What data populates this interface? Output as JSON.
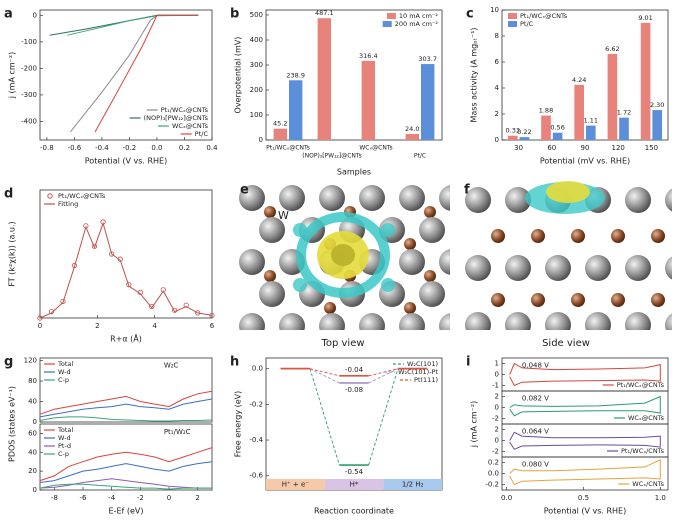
{
  "chart_data": [
    {
      "label": "a",
      "type": "line",
      "xlabel": "Potential (V vs. RHE)",
      "ylabel": "j (mA cm⁻²)",
      "xlim": [
        -0.85,
        0.4
      ],
      "xticks": [
        -0.8,
        -0.6,
        -0.4,
        -0.2,
        {
          "value": 0,
          "label": "0.0"
        },
        0.2,
        0.4
      ],
      "ylim": [
        -470,
        20
      ],
      "yticks": [
        -400,
        -300,
        -200,
        -100,
        0
      ],
      "legend": "lower right",
      "series": [
        {
          "name": "Pt₁/WCₓ@CNTs",
          "color": "#8a8a8a",
          "x": [
            -0.63,
            -0.4,
            -0.2,
            -0.05,
            0.0,
            0.3
          ],
          "values": [
            -440,
            -290,
            -150,
            -20,
            0,
            0
          ]
        },
        {
          "name": "(NOP)₃[PW₁₂]@CNTs",
          "color": "#2f6f6a",
          "x": [
            -0.78,
            -0.5,
            -0.2,
            0.0,
            0.3
          ],
          "values": [
            -75,
            -50,
            -20,
            0,
            0
          ]
        },
        {
          "name": "WCₓ@CNTs",
          "color": "#3aa57a",
          "x": [
            -0.65,
            -0.4,
            -0.2,
            0.0,
            0.3
          ],
          "values": [
            -75,
            -45,
            -20,
            -2,
            0
          ]
        },
        {
          "name": "Pt/C",
          "color": "#d9453b",
          "x": [
            -0.45,
            -0.3,
            -0.1,
            0.0,
            0.3
          ],
          "values": [
            -440,
            -300,
            -110,
            0,
            0
          ]
        }
      ]
    },
    {
      "label": "b",
      "type": "bar",
      "xlabel": "Samples",
      "ylabel": "Overpotential (mV)",
      "categories": [
        "Pt₁/WCₓ@CNTs",
        "(NOP)₃[PW₁₂]@CNTs",
        "WCₓ@CNTs",
        "Pt/C"
      ],
      "ylim": [
        0,
        520
      ],
      "yticks": [
        0,
        100,
        200,
        300,
        400,
        500
      ],
      "legend": "upper right",
      "series": [
        {
          "name": "10 mA cm⁻²",
          "color": "#e8837c",
          "values": [
            45.2,
            487.1,
            316.4,
            24.0
          ],
          "value_labels": [
            "45.2",
            "487.1",
            "316.4",
            "24.0"
          ]
        },
        {
          "name": "200 mA cm⁻²",
          "color": "#5b8fd9",
          "values": [
            238.9,
            null,
            null,
            303.7
          ]
        }
      ]
    },
    {
      "label": "c",
      "type": "bar",
      "xlabel": "Potential (mV vs. RHE)",
      "ylabel": "Mass activity (A mgₚₜ⁻¹)",
      "categories": [
        "30",
        "60",
        "90",
        "120",
        "150"
      ],
      "ylim": [
        0,
        10
      ],
      "yticks": [
        0,
        2,
        4,
        6,
        8,
        10
      ],
      "legend": "upper left",
      "series": [
        {
          "name": "Pt₁/WCₓ@CNTs",
          "color": "#e8837c",
          "values": [
            0.33,
            1.88,
            4.24,
            6.62,
            9.01
          ]
        },
        {
          "name": "Pt/C",
          "color": "#5b8fd9",
          "values": [
            0.22,
            0.56,
            1.11,
            1.72,
            2.3
          ],
          "value_labels": [
            "0.22",
            "0.56",
            "1.11",
            "1.72",
            "2.30"
          ]
        }
      ]
    },
    {
      "label": "d",
      "type": "line",
      "xlabel": "R+α (Å)",
      "ylabel": "FT (k²χ(k)) (a.u.)",
      "xlim": [
        0,
        6
      ],
      "xticks": [
        0,
        2,
        4,
        6
      ],
      "ylim": [
        0,
        1
      ],
      "legend": "upper left",
      "x": [
        0,
        0.4,
        0.8,
        1.2,
        1.6,
        1.9,
        2.2,
        2.5,
        2.8,
        3.1,
        3.5,
        3.9,
        4.3,
        4.7,
        5.1,
        5.5,
        6
      ],
      "series": [
        {
          "name": "Pt₁/WCₓ@CNTs",
          "color": "#c0504d",
          "marker": "o",
          "values": [
            0.0,
            0.05,
            0.13,
            0.41,
            0.72,
            0.56,
            0.75,
            0.5,
            0.46,
            0.26,
            0.2,
            0.09,
            0.22,
            0.06,
            0.1,
            0.04,
            0.02
          ]
        },
        {
          "name": "Fitting",
          "color": "#c0504d",
          "values": [
            0.0,
            0.04,
            0.12,
            0.4,
            0.71,
            0.55,
            0.74,
            0.5,
            0.45,
            0.25,
            0.19,
            0.08,
            0.21,
            0.05,
            0.09,
            0.04,
            0.02
          ]
        }
      ]
    },
    {
      "label": "g",
      "type": "line",
      "ylabel": "PDOS (states eV⁻¹)",
      "annotation": "W₂C",
      "xlim": [
        -9,
        3
      ],
      "ylim": [
        0,
        125
      ],
      "yticks": [
        0,
        40,
        80,
        120
      ],
      "legend": "upper left",
      "x": [
        -9,
        -8,
        -7,
        -6,
        -5,
        -4,
        -3,
        -2,
        -1,
        0,
        1,
        2,
        3
      ],
      "series": [
        {
          "name": "Total",
          "color": "#d9453b",
          "values": [
            15,
            25,
            30,
            35,
            40,
            45,
            50,
            40,
            35,
            30,
            45,
            55,
            60
          ]
        },
        {
          "name": "W-d",
          "color": "#3b6fc4",
          "values": [
            10,
            15,
            20,
            25,
            28,
            30,
            35,
            30,
            28,
            25,
            35,
            40,
            45
          ]
        },
        {
          "name": "C-p",
          "color": "#3aa57a",
          "values": [
            3,
            8,
            10,
            10,
            8,
            5,
            4,
            3,
            2,
            2,
            3,
            3,
            4
          ]
        }
      ]
    },
    {
      "type": "line",
      "xlabel": "E-Ef (eV)",
      "annotation": "Pt₁/W₂C",
      "xlim": [
        -9,
        3
      ],
      "xticks": [
        -8,
        -6,
        -4,
        -2,
        0,
        2
      ],
      "ylim": [
        0,
        70
      ],
      "yticks": [
        0,
        20,
        40,
        60
      ],
      "legend": "upper left",
      "x": [
        -9,
        -8,
        -7,
        -6,
        -5,
        -4,
        -3,
        -2,
        -1,
        0,
        1,
        2,
        3
      ],
      "series": [
        {
          "name": "Total",
          "color": "#d9453b",
          "values": [
            10,
            15,
            25,
            30,
            35,
            38,
            40,
            38,
            35,
            30,
            35,
            40,
            45
          ]
        },
        {
          "name": "W-d",
          "color": "#3b6fc4",
          "values": [
            8,
            10,
            15,
            20,
            22,
            25,
            28,
            25,
            22,
            20,
            25,
            28,
            30
          ]
        },
        {
          "name": "Pt-d",
          "color": "#8e5bb5",
          "values": [
            2,
            3,
            5,
            8,
            10,
            12,
            10,
            8,
            6,
            4,
            3,
            2,
            2
          ]
        },
        {
          "name": "C-p",
          "color": "#3aa57a",
          "values": [
            2,
            5,
            6,
            6,
            5,
            4,
            3,
            2,
            2,
            1,
            2,
            2,
            2
          ]
        }
      ]
    },
    {
      "label": "h",
      "type": "energy",
      "xlabel": "Reaction coordinate",
      "ylabel": "Free energy (eV)",
      "categories": [
        "H⁺ + e⁻",
        "H*",
        "1/2 H₂"
      ],
      "ylim": [
        -0.68,
        0.06
      ],
      "yticks": [
        -0.6,
        -0.4,
        -0.2,
        {
          "value": 0,
          "label": "0.0"
        }
      ],
      "legend": "upper right",
      "series": [
        {
          "name": "W₂C(101)",
          "color": "#2e9e6b",
          "values": [
            0,
            -0.54,
            0
          ],
          "value_labels": [
            null,
            "-0.54",
            null
          ]
        },
        {
          "name": "W₂C(101)-Pt",
          "color": "#a58fc9",
          "values": [
            0,
            -0.08,
            0
          ],
          "value_labels": [
            null,
            "-0.08",
            null
          ]
        },
        {
          "name": "Pt(111)",
          "color": "#e0533f",
          "values": [
            0,
            -0.04,
            0
          ],
          "value_labels": [
            null,
            "-0.04",
            null
          ]
        }
      ]
    },
    {
      "label": "i",
      "type": "line",
      "annotation": "0.048 V",
      "xlim": [
        -0.03,
        1.05
      ],
      "ylim": [
        -1.5,
        1.5
      ],
      "yticks": [
        -1,
        0,
        1
      ],
      "legend": "lower right",
      "x": [
        0.02,
        0.05,
        0.1,
        0.3,
        0.6,
        0.9,
        1.0,
        1.0,
        0.9,
        0.6,
        0.3,
        0.1,
        0.05,
        0.02
      ],
      "series": [
        {
          "name": "Pt₁/WCₓ@CNTs",
          "color": "#d9453b",
          "values": [
            0,
            1.0,
            0.6,
            0.45,
            0.5,
            0.6,
            0.9,
            -0.6,
            -0.5,
            -0.55,
            -0.6,
            -0.7,
            -1.0,
            -0.2
          ]
        }
      ]
    },
    {
      "type": "line",
      "ylabel": "j (mA cm⁻²)",
      "annotation": "0.082 V",
      "xlim": [
        -0.03,
        1.05
      ],
      "ylim": [
        -3,
        3
      ],
      "yticks": [
        -2,
        0,
        2
      ],
      "legend": "lower right",
      "x": [
        0.02,
        0.05,
        0.1,
        0.3,
        0.6,
        0.9,
        1.0,
        1.0,
        0.9,
        0.6,
        0.3,
        0.1,
        0.05,
        0.02
      ],
      "series": [
        {
          "name": "WCₓ@CNTs",
          "color": "#2a9d6e",
          "values": [
            0,
            0.5,
            0.3,
            0.2,
            0.3,
            0.8,
            2.0,
            -1.0,
            -0.6,
            -0.6,
            -0.7,
            -0.8,
            -1.5,
            -0.3
          ]
        }
      ]
    },
    {
      "type": "line",
      "annotation": "0.064 V",
      "xlim": [
        -0.03,
        1.05
      ],
      "ylim": [
        -3,
        3
      ],
      "yticks": [
        -2,
        0,
        2
      ],
      "legend": "lower right",
      "x": [
        0.02,
        0.05,
        0.1,
        0.3,
        0.6,
        0.9,
        1.0,
        1.0,
        0.9,
        0.6,
        0.3,
        0.1,
        0.05,
        0.02
      ],
      "series": [
        {
          "name": "Pt₁/WCₓ/CNTs",
          "color": "#6a4c9c",
          "values": [
            0,
            1.5,
            0.8,
            0.5,
            0.5,
            0.6,
            0.8,
            -1.2,
            -0.9,
            -0.8,
            -0.9,
            -1.0,
            -1.6,
            -0.3
          ]
        }
      ]
    },
    {
      "type": "line",
      "xlabel": "Potential (V vs. RHE)",
      "annotation": "0.080 V",
      "xlim": [
        -0.03,
        1.05
      ],
      "xticks": [
        {
          "value": 0,
          "label": "0.0"
        },
        0.5,
        {
          "value": 1,
          "label": "1.0"
        }
      ],
      "ylim": [
        -0.3,
        0.3
      ],
      "yticks": [
        -0.2,
        {
          "value": 0,
          "label": "0.0"
        },
        0.2
      ],
      "legend": "lower right",
      "x": [
        0.02,
        0.05,
        0.1,
        0.3,
        0.6,
        0.9,
        1.0,
        1.0,
        0.9,
        0.6,
        0.3,
        0.1,
        0.05,
        0.02
      ],
      "series": [
        {
          "name": "WCₓ/CNTs",
          "color": "#e8a33c",
          "values": [
            0,
            0.08,
            0.05,
            0.05,
            0.08,
            0.12,
            0.25,
            -0.1,
            -0.08,
            -0.1,
            -0.12,
            -0.14,
            -0.2,
            -0.05
          ]
        }
      ]
    }
  ],
  "panels": [
    {
      "label": "e",
      "caption": "Top view",
      "atom_label": "W"
    },
    {
      "label": "f",
      "caption": "Side view"
    }
  ]
}
